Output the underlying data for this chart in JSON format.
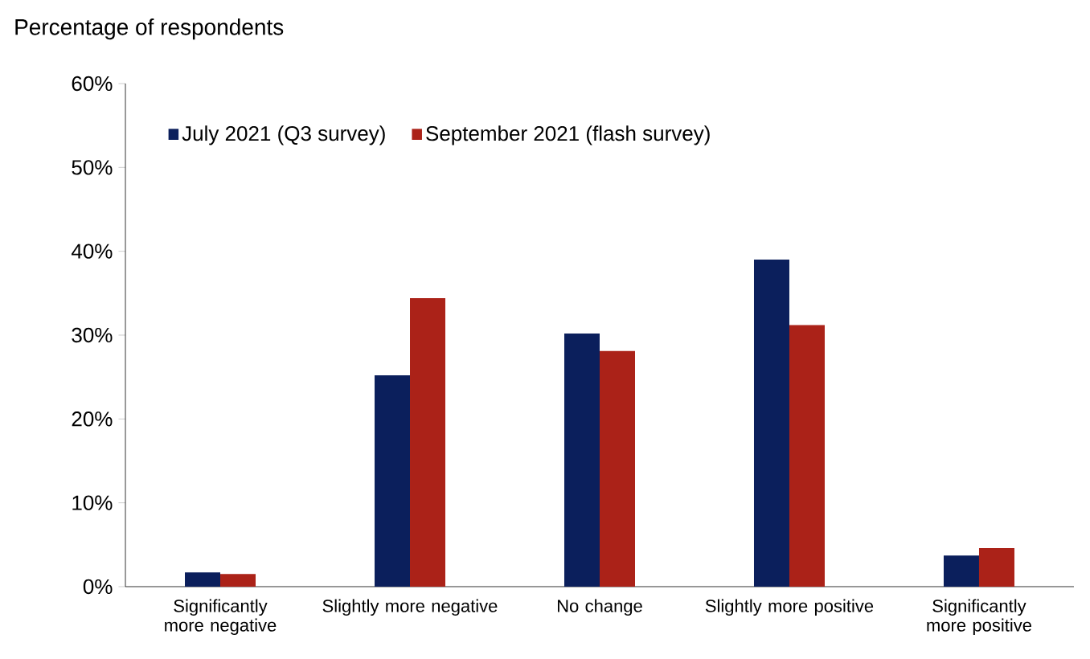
{
  "chart_data": {
    "type": "bar",
    "ylabel": "Percentage of respondents",
    "categories": [
      "Significantly more negative",
      "Slightly more negative",
      "No change",
      "Slightly more positive",
      "Significantly more positive"
    ],
    "series": [
      {
        "name": "July 2021 (Q3 survey)",
        "color": "#0b1f5c",
        "values": [
          1.7,
          25.2,
          30.2,
          39.0,
          3.7
        ]
      },
      {
        "name": "September 2021 (flash survey)",
        "color": "#ab2218",
        "values": [
          1.5,
          34.4,
          28.1,
          31.2,
          4.6
        ]
      }
    ],
    "ylim": [
      0,
      60
    ],
    "yticks": [
      {
        "value": 0,
        "label": "0%"
      },
      {
        "value": 10,
        "label": "10%"
      },
      {
        "value": 20,
        "label": "20%"
      },
      {
        "value": 30,
        "label": "30%"
      },
      {
        "value": 40,
        "label": "40%"
      },
      {
        "value": 50,
        "label": "50%"
      },
      {
        "value": 60,
        "label": "60%"
      }
    ],
    "legend": "top left",
    "grid": false
  }
}
